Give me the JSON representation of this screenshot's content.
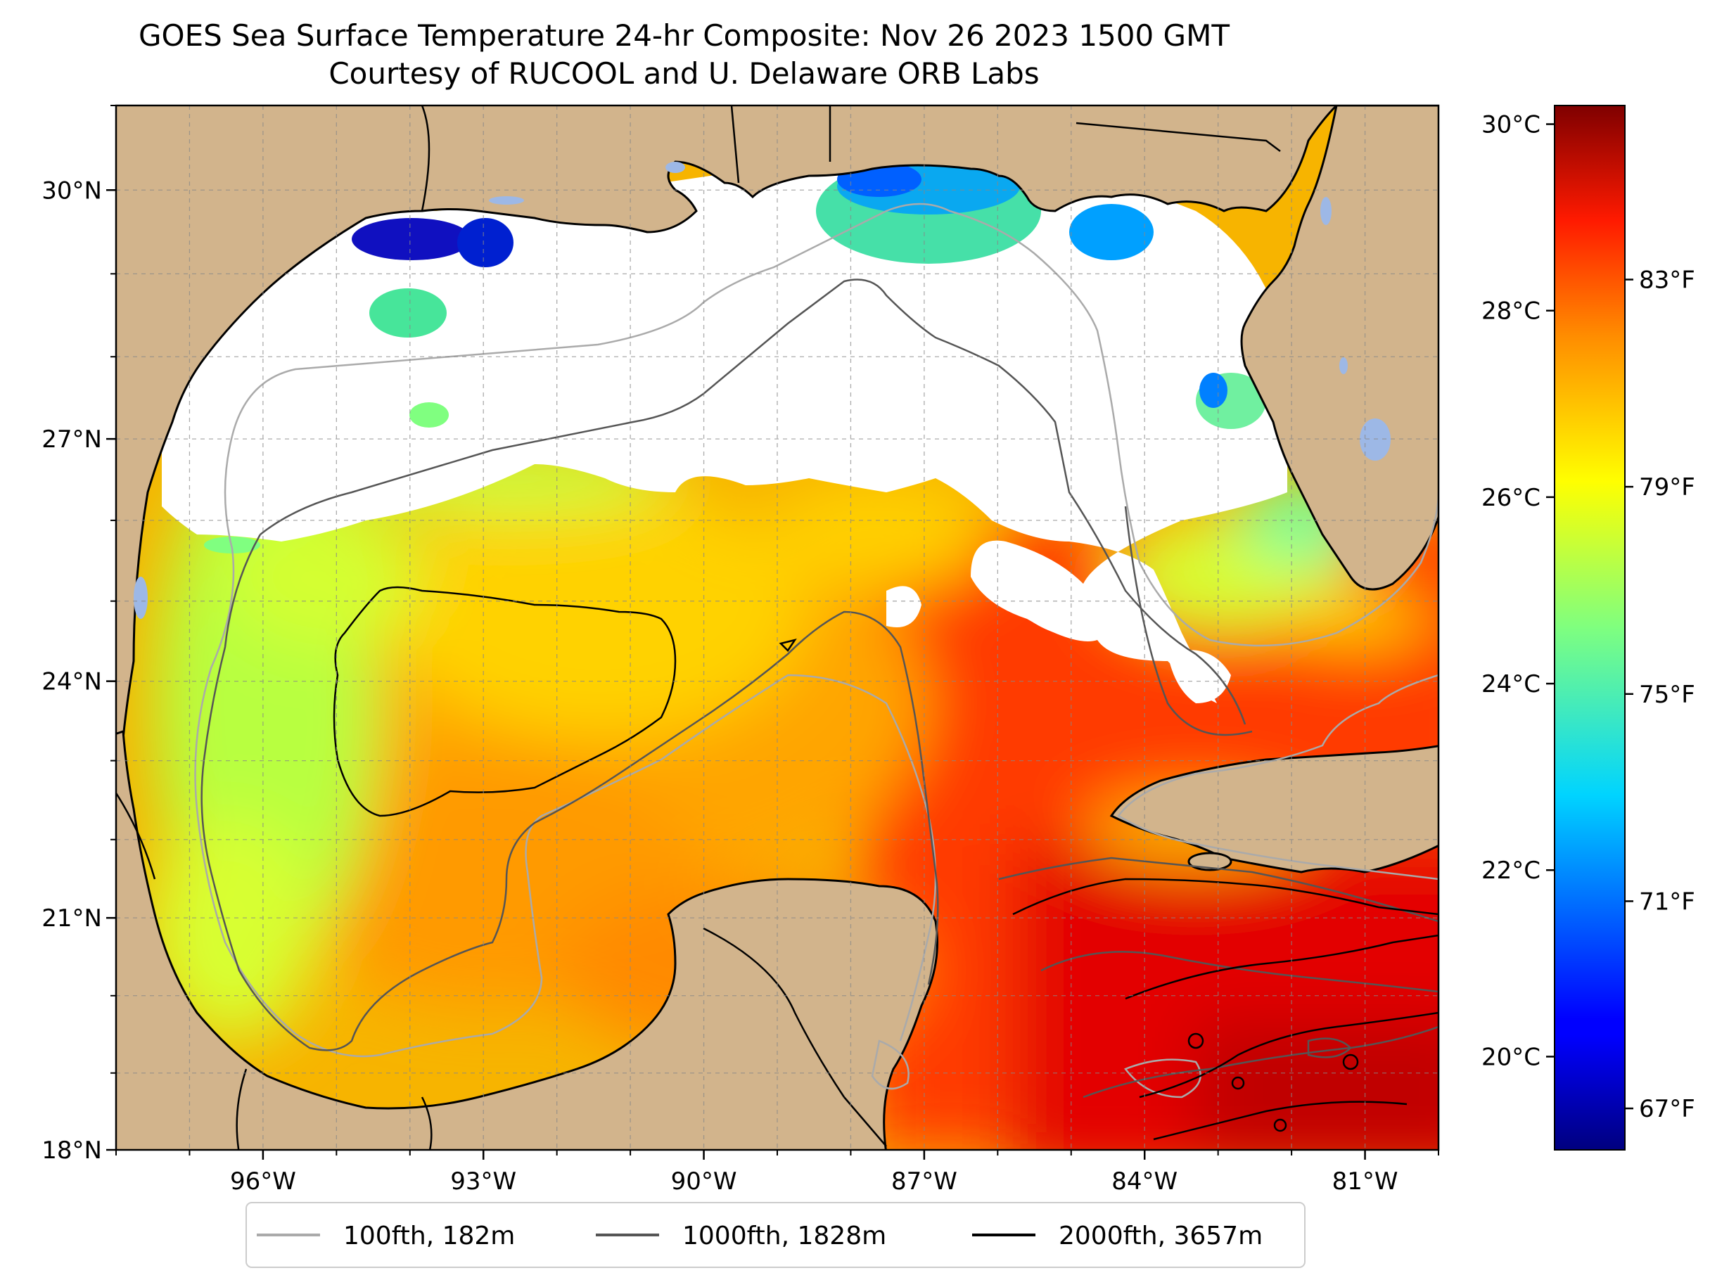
{
  "title": {
    "line1": "GOES Sea Surface Temperature 24-hr Composite: Nov 26 2023 1500 GMT",
    "line2": "Courtesy of RUCOOL and U. Delaware ORB Labs"
  },
  "map": {
    "lon_range": [
      -98,
      -80
    ],
    "lat_range": [
      18,
      31
    ],
    "lat_ticks": [
      {
        "value": 18,
        "label": "18°N"
      },
      {
        "value": 21,
        "label": "21°N"
      },
      {
        "value": 24,
        "label": "24°N"
      },
      {
        "value": 27,
        "label": "27°N"
      },
      {
        "value": 30,
        "label": "30°N"
      }
    ],
    "lon_ticks": [
      {
        "value": -96,
        "label": "96°W"
      },
      {
        "value": -93,
        "label": "93°W"
      },
      {
        "value": -90,
        "label": "90°W"
      },
      {
        "value": -87,
        "label": "87°W"
      },
      {
        "value": -84,
        "label": "84°W"
      },
      {
        "value": -81,
        "label": "81°W"
      }
    ],
    "land_color": "#d2b48c",
    "cloud_color": "#ffffff",
    "lake_color": "#9db8e6"
  },
  "colorbar": {
    "colormap": "jet",
    "celsius_range": [
      19,
      30.2
    ],
    "celsius_ticks": [
      {
        "value": 20,
        "label": "20°C"
      },
      {
        "value": 22,
        "label": "22°C"
      },
      {
        "value": 24,
        "label": "24°C"
      },
      {
        "value": 26,
        "label": "26°C"
      },
      {
        "value": 28,
        "label": "28°C"
      },
      {
        "value": 30,
        "label": "30°C"
      }
    ],
    "fahrenheit_ticks": [
      {
        "value": 67,
        "label": "67°F"
      },
      {
        "value": 71,
        "label": "71°F"
      },
      {
        "value": 75,
        "label": "75°F"
      },
      {
        "value": 79,
        "label": "79°F"
      },
      {
        "value": 83,
        "label": "83°F"
      }
    ]
  },
  "legend": {
    "placement": "bottom-center",
    "items": [
      {
        "label": "100fth, 182m",
        "color": "#aaaaaa"
      },
      {
        "label": "1000fth, 1828m",
        "color": "#555555"
      },
      {
        "label": "2000fth, 3657m",
        "color": "#000000"
      }
    ]
  }
}
